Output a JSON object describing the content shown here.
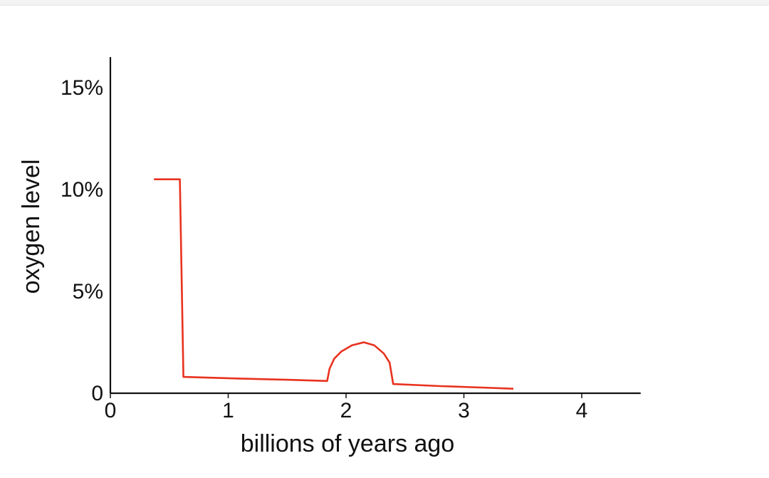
{
  "chart_data": {
    "type": "line",
    "title": "",
    "xlabel": "billions of years ago",
    "ylabel": "oxygen level",
    "xlim": [
      0,
      4.5
    ],
    "ylim": [
      0,
      16.5
    ],
    "x_ticks": [
      {
        "value": 0,
        "label": "0"
      },
      {
        "value": 1,
        "label": "1"
      },
      {
        "value": 2,
        "label": "2"
      },
      {
        "value": 3,
        "label": "3"
      },
      {
        "value": 4,
        "label": "4"
      }
    ],
    "y_ticks": [
      {
        "value": 0,
        "label": "0"
      },
      {
        "value": 5,
        "label": "5%"
      },
      {
        "value": 10,
        "label": "10%"
      },
      {
        "value": 15,
        "label": "15%"
      }
    ],
    "grid": false,
    "series": [
      {
        "color": "#e8321e",
        "points": [
          [
            0.37,
            10.5
          ],
          [
            0.59,
            10.5
          ],
          [
            0.62,
            0.8
          ],
          [
            1.1,
            0.72
          ],
          [
            1.5,
            0.66
          ],
          [
            1.84,
            0.6
          ],
          [
            1.86,
            1.2
          ],
          [
            1.9,
            1.7
          ],
          [
            1.96,
            2.05
          ],
          [
            2.05,
            2.35
          ],
          [
            2.15,
            2.5
          ],
          [
            2.24,
            2.35
          ],
          [
            2.32,
            1.95
          ],
          [
            2.37,
            1.5
          ],
          [
            2.4,
            0.45
          ],
          [
            2.8,
            0.35
          ],
          [
            3.15,
            0.28
          ],
          [
            3.42,
            0.22
          ]
        ]
      }
    ]
  }
}
